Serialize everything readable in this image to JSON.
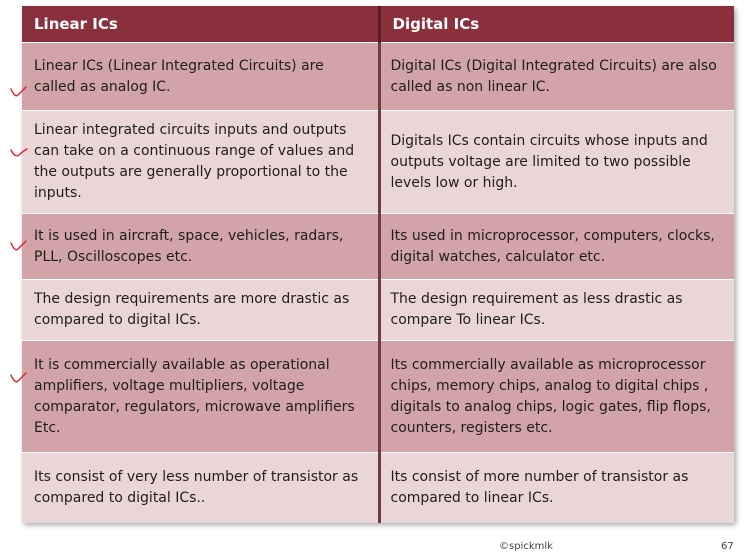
{
  "table": {
    "headers": [
      "Linear ICs",
      "Digital ICs"
    ],
    "rows": [
      {
        "linear": "Linear ICs (Linear Integrated Circuits) are called as analog IC.",
        "digital": "Digital ICs (Digital Integrated Circuits) are also called as non linear IC."
      },
      {
        "linear": "Linear integrated circuits inputs and outputs can take on a continuous range of values and the outputs are generally proportional to the inputs.",
        "digital": "Digitals ICs contain circuits whose inputs and outputs voltage are limited to two possible levels low or high."
      },
      {
        "linear": "It is used in aircraft, space, vehicles, radars, PLL, Oscilloscopes etc.",
        "digital": "Its used in microprocessor, computers, clocks, digital watches, calculator etc."
      },
      {
        "linear": "The design requirements are more drastic as compared to digital ICs.",
        "digital": "The design requirement as less drastic as compare To linear ICs."
      },
      {
        "linear": "It is commercially available as operational amplifiers, voltage multipliers, voltage comparator, regulators, microwave amplifiers Etc.",
        "digital": "Its commercially available as microprocessor chips, memory chips, analog to digital chips , digitals to analog chips, logic gates, flip flops, counters, registers etc."
      },
      {
        "linear": "Its consist of very less number of transistor as compared to digital ICs..",
        "digital": "Its consist of more number of transistor as compared to linear ICs."
      }
    ]
  },
  "footer": {
    "credit": "©spickmlk",
    "page_number": "67"
  },
  "colors": {
    "header_bg": "#8a2f3c",
    "row_dark": "#d2a4a8",
    "row_light": "#ebd6d7",
    "annotation_ink": "#e0202a"
  }
}
